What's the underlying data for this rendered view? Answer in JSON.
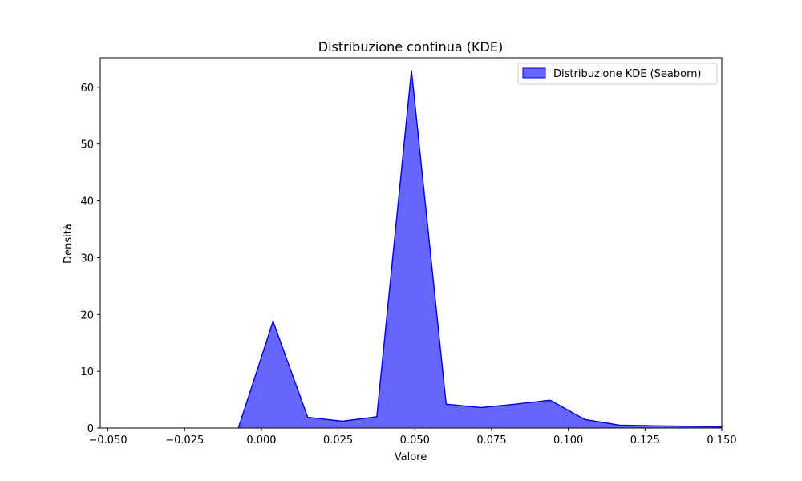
{
  "chart_data": {
    "type": "area",
    "title": "Distribuzione continua (KDE)",
    "xlabel": "Valore",
    "ylabel": "Densità",
    "xlim": [
      -0.0525,
      0.15
    ],
    "ylim": [
      0,
      65.2
    ],
    "grid": false,
    "legend": "top-right",
    "xticks": [
      {
        "value": -0.05,
        "label": "−0.050"
      },
      {
        "value": -0.025,
        "label": "−0.025"
      },
      {
        "value": 0.0,
        "label": "0.000"
      },
      {
        "value": 0.025,
        "label": "0.025"
      },
      {
        "value": 0.05,
        "label": "0.050"
      },
      {
        "value": 0.075,
        "label": "0.075"
      },
      {
        "value": 0.1,
        "label": "0.100"
      },
      {
        "value": 0.125,
        "label": "0.125"
      },
      {
        "value": 0.15,
        "label": "0.150"
      }
    ],
    "yticks": [
      {
        "value": 0,
        "label": "0"
      },
      {
        "value": 10,
        "label": "10"
      },
      {
        "value": 20,
        "label": "20"
      },
      {
        "value": 30,
        "label": "30"
      },
      {
        "value": 40,
        "label": "40"
      },
      {
        "value": 50,
        "label": "50"
      },
      {
        "value": 60,
        "label": "60"
      }
    ],
    "series": [
      {
        "name": "Distribuzione KDE (Seaborn)",
        "fill_color": "#6666ff",
        "line_color": "#0000dd",
        "x": [
          -0.0075,
          0.0038,
          0.0151,
          0.0264,
          0.0376,
          0.0489,
          0.0602,
          0.0715,
          0.0828,
          0.0941,
          0.1054,
          0.1167,
          0.128,
          0.1393,
          0.15
        ],
        "y": [
          0.0,
          18.8,
          1.9,
          1.2,
          2.0,
          63.0,
          4.2,
          3.6,
          4.2,
          4.9,
          1.5,
          0.5,
          0.4,
          0.3,
          0.2
        ]
      }
    ]
  }
}
